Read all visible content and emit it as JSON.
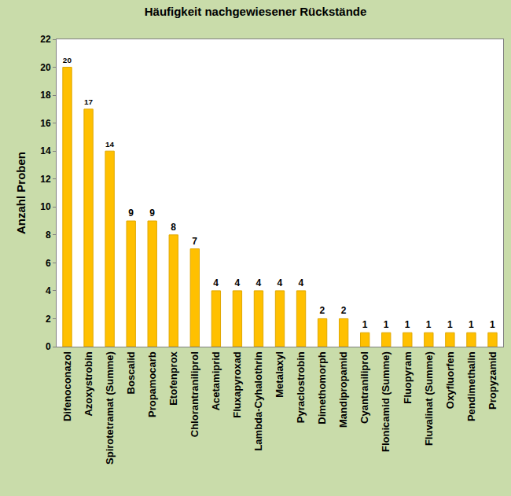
{
  "chart_data": {
    "type": "bar",
    "title": "Häufigkeit nachgewiesener Rückstände",
    "y_label": "Anzahl Proben",
    "categories": [
      "Difenoconazol",
      "Azoxystrobin",
      "Spirotetramat (Summe)",
      "Boscalid",
      "Propamocarb",
      "Etofenprox",
      "Chlorantraniliprol",
      "Acetamiprid",
      "Fluxapyroxad",
      "Lambda-Cyhalothrin",
      "Metalaxyl",
      "Pyraclostrobin",
      "Dimethomorph",
      "Mandipropamid",
      "Cyantraniliprol",
      "Flonicamid (Summe)",
      "Fluopyram",
      "Fluvalinat (Summe)",
      "Oxyfluorfen",
      "Pendimethalin",
      "Propyzamid"
    ],
    "values": [
      20,
      17,
      14,
      9,
      9,
      8,
      7,
      4,
      4,
      4,
      4,
      4,
      2,
      2,
      1,
      1,
      1,
      1,
      1,
      1,
      1
    ],
    "color": "#ffc000",
    "ylim": [
      0,
      22
    ],
    "yticks": [
      0,
      2,
      4,
      6,
      8,
      10,
      12,
      14,
      16,
      18,
      20,
      22
    ],
    "grid": false,
    "data_labels": true
  }
}
